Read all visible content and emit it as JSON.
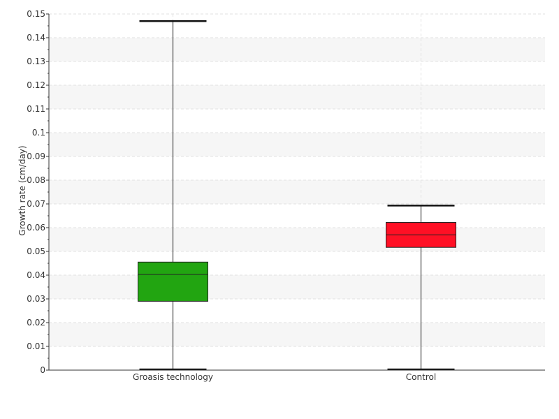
{
  "chart_data": {
    "type": "box",
    "ylabel": "Growth rate (cm/day)",
    "ylim": [
      0,
      0.15
    ],
    "yticks": [
      "0",
      "0.01",
      "0.02",
      "0.03",
      "0.04",
      "0.05",
      "0.06",
      "0.07",
      "0.08",
      "0.09",
      "0.1",
      "0.11",
      "0.12",
      "0.13",
      "0.14",
      "0.15"
    ],
    "grid": true,
    "categories": [
      "Groasis technology",
      "Control"
    ],
    "boxes": [
      {
        "category": "Groasis technology",
        "min": 0.0,
        "q1": 0.029,
        "median": 0.0403,
        "q3": 0.0455,
        "max": 0.147,
        "color": "#22a511"
      },
      {
        "category": "Control",
        "min": 0.0,
        "q1": 0.0517,
        "median": 0.057,
        "q3": 0.0622,
        "max": 0.0693,
        "color": "#ff1025"
      }
    ]
  }
}
